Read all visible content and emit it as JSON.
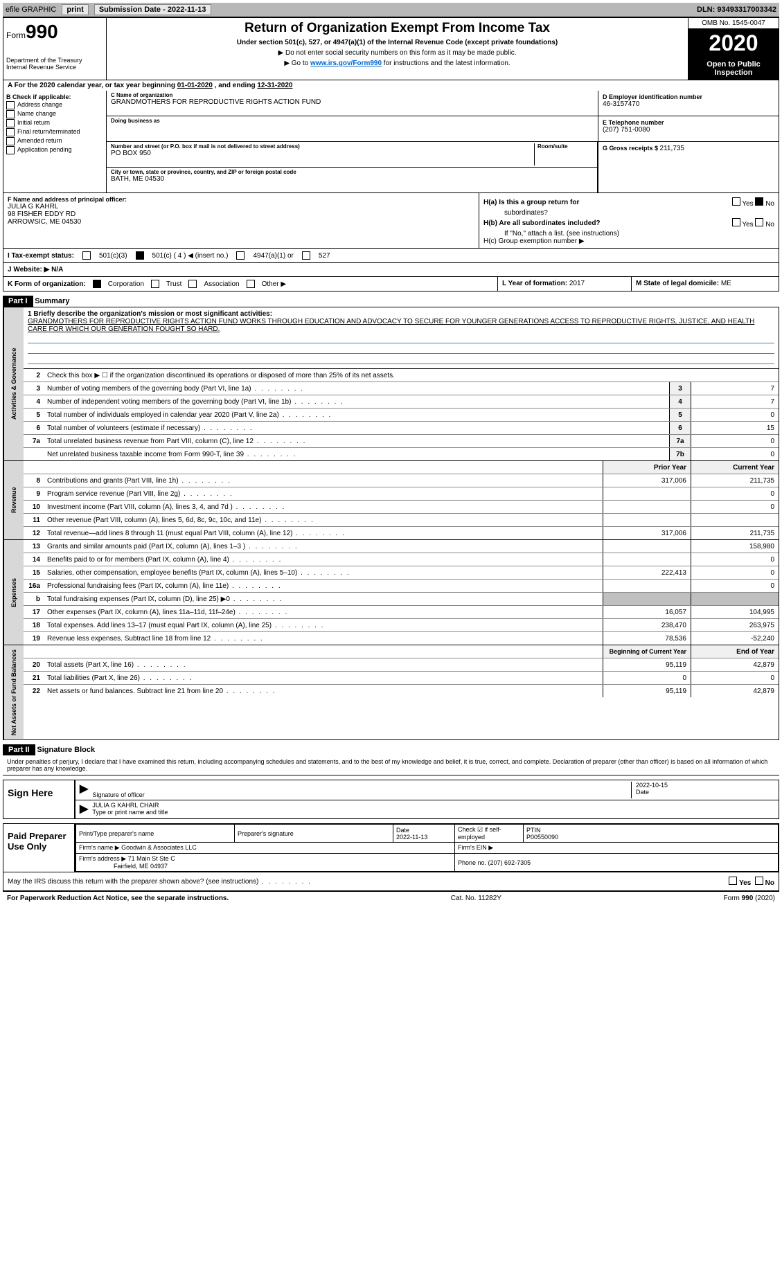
{
  "colors": {
    "topbar_bg": "#b8b8b8",
    "black": "#000000",
    "link": "#0066cc",
    "shade": "#c0c0c0",
    "line_blue": "#4080c0"
  },
  "topbar": {
    "efile": "efile GRAPHIC",
    "print": "print",
    "submission_label": "Submission Date - ",
    "submission_date": "2022-11-13",
    "dln_label": "DLN: ",
    "dln": "93493317003342"
  },
  "header": {
    "form_word": "Form",
    "form_num": "990",
    "dept": "Department of the Treasury",
    "dept2": "Internal Revenue Service",
    "title": "Return of Organization Exempt From Income Tax",
    "sub": "Under section 501(c), 527, or 4947(a)(1) of the Internal Revenue Code (except private foundations)",
    "note1": "▶ Do not enter social security numbers on this form as it may be made public.",
    "note2_pre": "▶ Go to ",
    "note2_link": "www.irs.gov/Form990",
    "note2_post": " for instructions and the latest information.",
    "omb": "OMB No. 1545-0047",
    "year": "2020",
    "inspect1": "Open to Public",
    "inspect2": "Inspection"
  },
  "period": {
    "line_a": "A For the 2020 calendar year, or tax year beginning ",
    "begin": "01-01-2020",
    "mid": " , and ending ",
    "end": "12-31-2020"
  },
  "checkboxes": {
    "hdr": "B Check if applicable:",
    "items": [
      "Address change",
      "Name change",
      "Initial return",
      "Final return/terminated",
      "Amended return",
      "Application pending"
    ]
  },
  "org": {
    "name_label": "C Name of organization",
    "name": "GRANDMOTHERS FOR REPRODUCTIVE RIGHTS ACTION FUND",
    "dba_label": "Doing business as",
    "dba": "",
    "addr_label": "Number and street (or P.O. box if mail is not delivered to street address)",
    "room_label": "Room/suite",
    "addr": "PO BOX 950",
    "city_label": "City or town, state or province, country, and ZIP or foreign postal code",
    "city": "BATH, ME  04530"
  },
  "right": {
    "ein_label": "D Employer identification number",
    "ein": "46-3157470",
    "phone_label": "E Telephone number",
    "phone": "(207) 751-0080",
    "gross_label": "G Gross receipts $ ",
    "gross": "211,735"
  },
  "officer": {
    "label": "F Name and address of principal officer:",
    "name": "JULIA G KAHRL",
    "addr1": "98 FISHER EDDY RD",
    "addr2": "ARROWSIC, ME  04530"
  },
  "h": {
    "a_label": "H(a)  Is this a group return for",
    "a_sub": "subordinates?",
    "b_label": "H(b)  Are all subordinates included?",
    "b_note": "If \"No,\" attach a list. (see instructions)",
    "c_label": "H(c)  Group exemption number ▶",
    "yes": "Yes",
    "no": "No"
  },
  "status": {
    "label": "I   Tax-exempt status:",
    "opt1": "501(c)(3)",
    "opt2": "501(c) ( 4 ) ◀ (insert no.)",
    "opt3": "4947(a)(1) or",
    "opt4": "527"
  },
  "website": {
    "label": "J   Website: ▶  ",
    "val": "N/A"
  },
  "form_org": {
    "k_label": "K Form of organization:",
    "corp": "Corporation",
    "trust": "Trust",
    "assoc": "Association",
    "other": "Other ▶",
    "l_label": "L Year of formation: ",
    "l_val": "2017",
    "m_label": "M State of legal domicile: ",
    "m_val": "ME"
  },
  "part1": {
    "header": "Part I",
    "title": "Summary",
    "mission_label": "1   Briefly describe the organization's mission or most significant activities:",
    "mission": "GRANDMOTHERS FOR REPRODUCTIVE RIGHTS ACTION FUND WORKS THROUGH EDUCATION AND ADVOCACY TO SECURE FOR YOUNGER GENERATIONS ACCESS TO REPRODUCTIVE RIGHTS, JUSTICE, AND HEALTH CARE FOR WHICH OUR GENERATION FOUGHT SO HARD.",
    "line2": "Check this box ▶ ☐  if the organization discontinued its operations or disposed of more than 25% of its net assets."
  },
  "sections": {
    "gov_label": "Activities & Governance",
    "rev_label": "Revenue",
    "exp_label": "Expenses",
    "net_label": "Net Assets or Fund Balances"
  },
  "gov_lines": [
    {
      "n": "3",
      "d": "Number of voting members of the governing body (Part VI, line 1a)",
      "box": "3",
      "v": "7"
    },
    {
      "n": "4",
      "d": "Number of independent voting members of the governing body (Part VI, line 1b)",
      "box": "4",
      "v": "7"
    },
    {
      "n": "5",
      "d": "Total number of individuals employed in calendar year 2020 (Part V, line 2a)",
      "box": "5",
      "v": "0"
    },
    {
      "n": "6",
      "d": "Total number of volunteers (estimate if necessary)",
      "box": "6",
      "v": "15"
    },
    {
      "n": "7a",
      "d": "Total unrelated business revenue from Part VIII, column (C), line 12",
      "box": "7a",
      "v": "0"
    },
    {
      "n": "",
      "d": "Net unrelated business taxable income from Form 990-T, line 39",
      "box": "7b",
      "v": "0"
    }
  ],
  "col_headers": {
    "prior": "Prior Year",
    "current": "Current Year"
  },
  "rev_lines": [
    {
      "n": "8",
      "d": "Contributions and grants (Part VIII, line 1h)",
      "p": "317,006",
      "c": "211,735"
    },
    {
      "n": "9",
      "d": "Program service revenue (Part VIII, line 2g)",
      "p": "",
      "c": "0"
    },
    {
      "n": "10",
      "d": "Investment income (Part VIII, column (A), lines 3, 4, and 7d )",
      "p": "",
      "c": "0"
    },
    {
      "n": "11",
      "d": "Other revenue (Part VIII, column (A), lines 5, 6d, 8c, 9c, 10c, and 11e)",
      "p": "",
      "c": ""
    },
    {
      "n": "12",
      "d": "Total revenue—add lines 8 through 11 (must equal Part VIII, column (A), line 12)",
      "p": "317,006",
      "c": "211,735"
    }
  ],
  "exp_lines": [
    {
      "n": "13",
      "d": "Grants and similar amounts paid (Part IX, column (A), lines 1–3 )",
      "p": "",
      "c": "158,980"
    },
    {
      "n": "14",
      "d": "Benefits paid to or for members (Part IX, column (A), line 4)",
      "p": "",
      "c": "0"
    },
    {
      "n": "15",
      "d": "Salaries, other compensation, employee benefits (Part IX, column (A), lines 5–10)",
      "p": "222,413",
      "c": "0"
    },
    {
      "n": "16a",
      "d": "Professional fundraising fees (Part IX, column (A), line 11e)",
      "p": "",
      "c": "0"
    },
    {
      "n": "b",
      "d": "Total fundraising expenses (Part IX, column (D), line 25) ▶0",
      "p": "SHADE",
      "c": "SHADE"
    },
    {
      "n": "17",
      "d": "Other expenses (Part IX, column (A), lines 11a–11d, 11f–24e)",
      "p": "16,057",
      "c": "104,995"
    },
    {
      "n": "18",
      "d": "Total expenses. Add lines 13–17 (must equal Part IX, column (A), line 25)",
      "p": "238,470",
      "c": "263,975"
    },
    {
      "n": "19",
      "d": "Revenue less expenses. Subtract line 18 from line 12",
      "p": "78,536",
      "c": "-52,240"
    }
  ],
  "net_headers": {
    "begin": "Beginning of Current Year",
    "end": "End of Year"
  },
  "net_lines": [
    {
      "n": "20",
      "d": "Total assets (Part X, line 16)",
      "p": "95,119",
      "c": "42,879"
    },
    {
      "n": "21",
      "d": "Total liabilities (Part X, line 26)",
      "p": "0",
      "c": "0"
    },
    {
      "n": "22",
      "d": "Net assets or fund balances. Subtract line 21 from line 20",
      "p": "95,119",
      "c": "42,879"
    }
  ],
  "part2": {
    "header": "Part II",
    "title": "Signature Block",
    "disclaimer": "Under penalties of perjury, I declare that I have examined this return, including accompanying schedules and statements, and to the best of my knowledge and belief, it is true, correct, and complete. Declaration of preparer (other than officer) is based on all information of which preparer has any knowledge."
  },
  "sign": {
    "label": "Sign Here",
    "sig_label": "Signature of officer",
    "date_label": "Date",
    "date": "2022-10-15",
    "name": "JULIA G KAHRL CHAIR",
    "name_label": "Type or print name and title"
  },
  "preparer": {
    "label": "Paid Preparer Use Only",
    "h1": "Print/Type preparer's name",
    "h2": "Preparer's signature",
    "h3": "Date",
    "h3v": "2022-11-13",
    "h4": "Check ☑ if self-employed",
    "h5": "PTIN",
    "h5v": "P00550090",
    "firm_label": "Firm's name    ▶ ",
    "firm": "Goodwin & Associates LLC",
    "ein_label": "Firm's EIN ▶",
    "addr_label": "Firm's address ▶ ",
    "addr1": "71 Main St Ste C",
    "addr2": "Fairfield, ME  04937",
    "phone_label": "Phone no. ",
    "phone": "(207) 692-7305"
  },
  "discuss": {
    "q": "May the IRS discuss this return with the preparer shown above? (see instructions)",
    "yes": "Yes",
    "no": "No"
  },
  "footer": {
    "left": "For Paperwork Reduction Act Notice, see the separate instructions.",
    "mid": "Cat. No. 11282Y",
    "right": "Form 990 (2020)"
  }
}
